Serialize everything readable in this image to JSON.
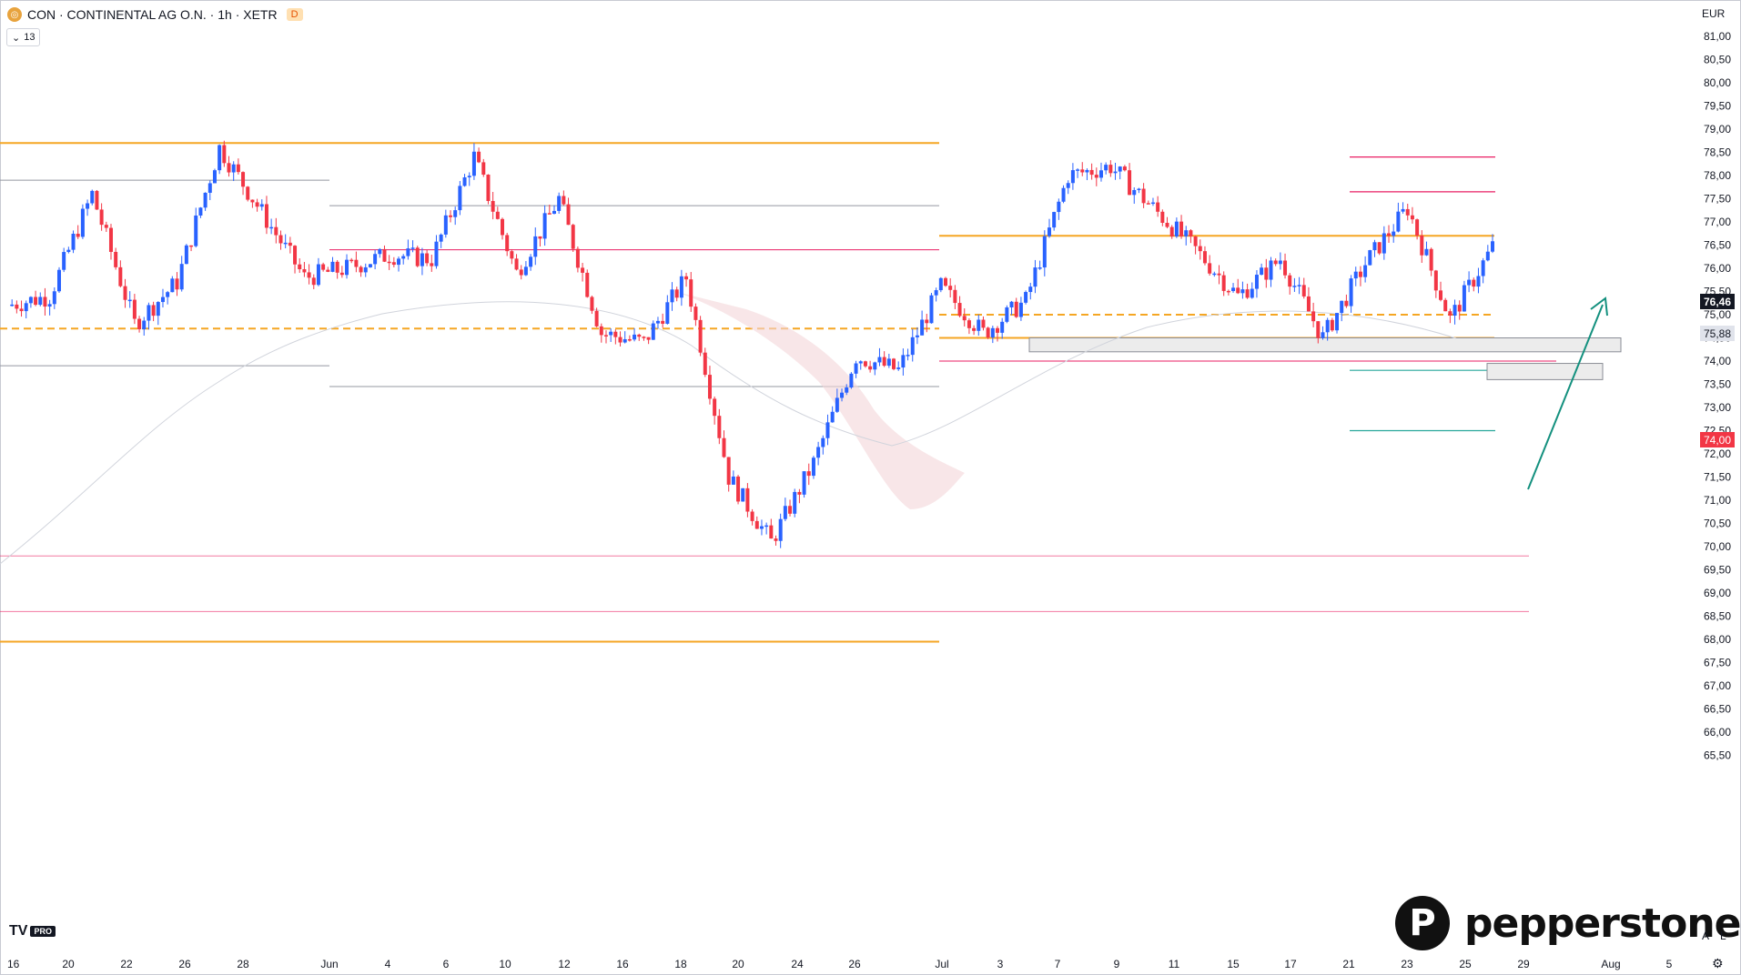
{
  "legend": {
    "symbol_icon": "continental-logo-icon",
    "title": "CON · CONTINENTAL AG O.N. · 1h · XETR",
    "d_badge": "D",
    "indicator_toggle": "13",
    "indicator_icon": "chevron-down-icon"
  },
  "currency": "EUR",
  "price_badge": "76,46",
  "ma_badge": "75,88",
  "level_badge": "74,00",
  "tv_logo": {
    "text": "TV",
    "badge": "PRO"
  },
  "brand": {
    "name": "pepperstone",
    "icon": "pepperstone-p-icon"
  },
  "corner_tools": {
    "auto": "A",
    "log": "L",
    "settings_icon": "gear-icon"
  },
  "colors": {
    "up_candle": "#2962ff",
    "down_candle": "#f23645",
    "orange_level": "#f5a623",
    "pink_level": "#e91e63",
    "gray_level": "#9598a1",
    "green_target": "#26a69a",
    "arrow": "#13907e",
    "zone_fill": "#ececec"
  },
  "chart_data": {
    "type": "candlestick",
    "symbol": "CON",
    "interval": "1h",
    "ylim": [
      65.5,
      81.5
    ],
    "y_ticks": [
      "81,00",
      "80,50",
      "80,00",
      "79,50",
      "79,00",
      "78,50",
      "78,00",
      "77,50",
      "77,00",
      "76,50",
      "76,00",
      "75,50",
      "75,00",
      "74,50",
      "74,00",
      "73,50",
      "73,00",
      "72,50",
      "72,00",
      "71,50",
      "71,00",
      "70,50",
      "70,00",
      "69,50",
      "69,00",
      "68,50",
      "68,00",
      "67,50",
      "67,00",
      "66,50",
      "66,00",
      "65,50"
    ],
    "x_ticks": [
      "16",
      "20",
      "22",
      "26",
      "28",
      "Jun",
      "4",
      "6",
      "10",
      "12",
      "16",
      "18",
      "20",
      "24",
      "26",
      "Jul",
      "3",
      "7",
      "9",
      "11",
      "15",
      "17",
      "21",
      "23",
      "25",
      "29",
      "Aug",
      "5"
    ],
    "price_path": [
      {
        "x": "16",
        "y": 75.2
      },
      {
        "x": "20",
        "y": 75.4
      },
      {
        "x": "22",
        "y": 77.6
      },
      {
        "x": "24",
        "y": 74.8
      },
      {
        "x": "26",
        "y": 75.7
      },
      {
        "x": "28",
        "y": 78.6
      },
      {
        "x": "29",
        "y": 77.2
      },
      {
        "x": "Jun",
        "y": 75.8
      },
      {
        "x": "4",
        "y": 76.0
      },
      {
        "x": "6",
        "y": 76.3
      },
      {
        "x": "10",
        "y": 76.2
      },
      {
        "x": "12",
        "y": 78.4
      },
      {
        "x": "13",
        "y": 75.9
      },
      {
        "x": "16",
        "y": 77.5
      },
      {
        "x": "18",
        "y": 74.6
      },
      {
        "x": "20",
        "y": 74.4
      },
      {
        "x": "23",
        "y": 75.8
      },
      {
        "x": "24",
        "y": 71.5
      },
      {
        "x": "26",
        "y": 70.1
      },
      {
        "x": "27",
        "y": 71.8
      },
      {
        "x": "28",
        "y": 74.1
      },
      {
        "x": "Jul",
        "y": 73.8
      },
      {
        "x": "3",
        "y": 75.6
      },
      {
        "x": "7",
        "y": 74.6
      },
      {
        "x": "8",
        "y": 75.3
      },
      {
        "x": "9",
        "y": 78.0
      },
      {
        "x": "11",
        "y": 78.2
      },
      {
        "x": "12",
        "y": 77.3
      },
      {
        "x": "15",
        "y": 76.4
      },
      {
        "x": "17",
        "y": 75.4
      },
      {
        "x": "18",
        "y": 76.2
      },
      {
        "x": "21",
        "y": 74.5
      },
      {
        "x": "23",
        "y": 76.1
      },
      {
        "x": "24",
        "y": 77.3
      },
      {
        "x": "25",
        "y": 74.9
      },
      {
        "x": "26",
        "y": 76.46
      }
    ],
    "levels": [
      {
        "value": 78.7,
        "color": "orange",
        "style": "solid"
      },
      {
        "value": 77.9,
        "color": "gray",
        "style": "solid"
      },
      {
        "value": 77.35,
        "color": "gray",
        "style": "solid"
      },
      {
        "value": 76.4,
        "color": "pink",
        "style": "solid"
      },
      {
        "value": 76.7,
        "color": "orange",
        "style": "solid"
      },
      {
        "value": 75.0,
        "color": "orange",
        "style": "dashed"
      },
      {
        "value": 74.7,
        "color": "orange",
        "style": "dashed"
      },
      {
        "value": 74.5,
        "color": "orange",
        "style": "solid"
      },
      {
        "value": 74.0,
        "color": "pink",
        "style": "solid"
      },
      {
        "value": 73.9,
        "color": "gray",
        "style": "solid"
      },
      {
        "value": 73.45,
        "color": "gray",
        "style": "solid"
      },
      {
        "value": 69.8,
        "color": "pink",
        "style": "solid"
      },
      {
        "value": 68.6,
        "color": "pink",
        "style": "solid"
      },
      {
        "value": 67.95,
        "color": "orange",
        "style": "solid"
      }
    ],
    "trade_levels": [
      78.4,
      77.65,
      73.8,
      72.5
    ],
    "zones": [
      [
        74.2,
        74.5
      ],
      [
        73.6,
        73.95
      ]
    ],
    "last_price": 76.46,
    "ma_value": 75.88,
    "grid": false
  }
}
